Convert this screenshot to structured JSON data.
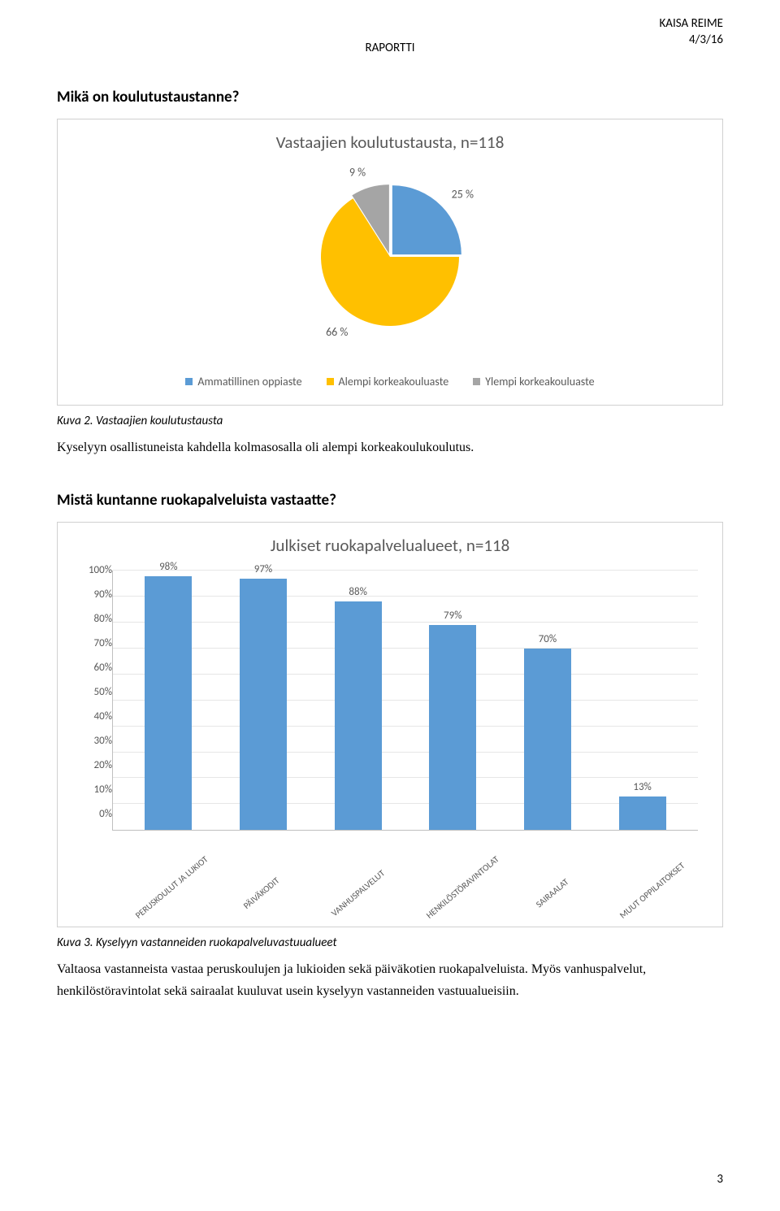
{
  "header": {
    "center": "RAPORTTI",
    "author": "KAISA REIME",
    "date": "4/3/16"
  },
  "section1": {
    "heading": "Mikä on koulutustaustanne?",
    "caption": "Kuva 2. Vastaajien koulutustausta",
    "body": "Kyselyyn osallistuneista kahdella kolmasosalla oli alempi korkeakoulukoulutus."
  },
  "pie": {
    "title": "Vastaajien koulutustausta, n=118",
    "background": "#ffffff",
    "label_color": "#595959",
    "slices": [
      {
        "label": "Ammatillinen oppiaste",
        "value": 25,
        "color": "#5b9bd5",
        "text": "25 %"
      },
      {
        "label": "Alempi korkeakouluaste",
        "value": 66,
        "color": "#ffc000",
        "text": "66 %"
      },
      {
        "label": "Ylempi korkeakouluaste",
        "value": 9,
        "color": "#a5a5a5",
        "text": "9 %"
      }
    ]
  },
  "section2": {
    "heading": "Mistä kuntanne ruokapalveluista vastaatte?",
    "caption": "Kuva 3. Kyselyyn vastanneiden ruokapalveluvastuualueet",
    "body": "Valtaosa vastanneista vastaa peruskoulujen ja lukioiden sekä päiväkotien ruokapalveluista. Myös vanhuspalvelut, henkilöstöravintolat sekä sairaalat kuuluvat usein kyselyyn vastanneiden vastuualueisiin."
  },
  "bar": {
    "title": "Julkiset ruokapalvelualueet, n=118",
    "bar_color": "#5b9bd5",
    "grid_color": "#e6e6e6",
    "axis_color": "#bfbfbf",
    "label_color": "#595959",
    "ylim": [
      0,
      100
    ],
    "ytick_step": 10,
    "yticks": [
      "0%",
      "10%",
      "20%",
      "30%",
      "40%",
      "50%",
      "60%",
      "70%",
      "80%",
      "90%",
      "100%"
    ],
    "categories": [
      "PERUSKOULUT JA LUKIOT",
      "PÄIVÄKODIT",
      "VANHUSPALVELUT",
      "HENKILÖSTÖRAVINTOLAT",
      "SAIRAALAT",
      "MUUT OPPILAITOKSET"
    ],
    "values": [
      98,
      97,
      88,
      79,
      70,
      13
    ],
    "value_labels": [
      "98%",
      "97%",
      "88%",
      "79%",
      "70%",
      "13%"
    ]
  },
  "page_number": "3"
}
